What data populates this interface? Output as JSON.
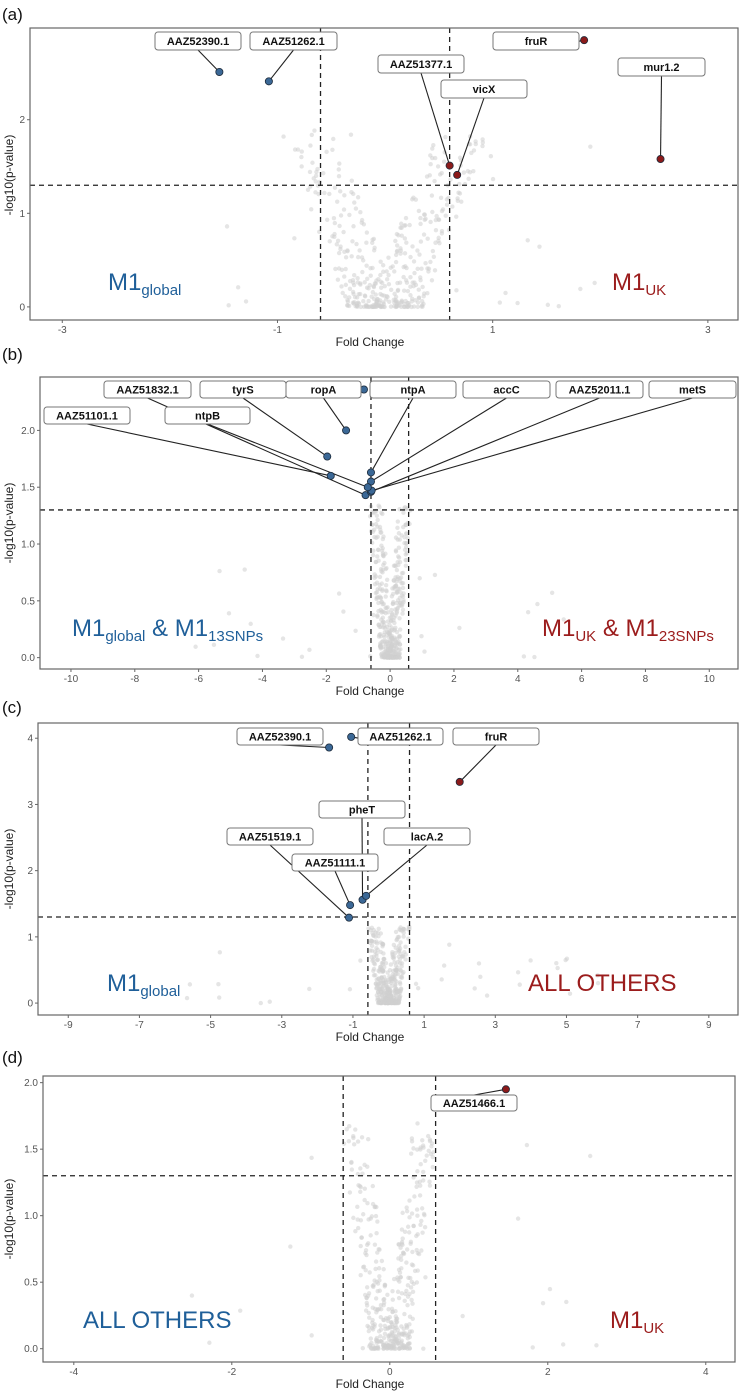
{
  "colors": {
    "blue": "#1f5f99",
    "red": "#9b1c1c",
    "blue_point": "#3b6896",
    "red_point": "#8b1a1a",
    "background_point": "#d0d0d0"
  },
  "chart_data": [
    {
      "type": "scatter",
      "tag": "(a)",
      "xlabel": "Fold Change",
      "ylabel": "-log10(p-value)",
      "xlim": [
        -3.3,
        3.28
      ],
      "ylim": [
        -0.14,
        2.98
      ],
      "xticks": [
        -3,
        -1,
        1,
        3
      ],
      "yticks": [
        0,
        1,
        2
      ],
      "ytick_labels": [
        "0",
        "1",
        "2"
      ],
      "fc_threshold": [
        -0.6,
        0.6
      ],
      "p_threshold": 1.3,
      "groups": {
        "left": {
          "color": "blue",
          "parts": [
            {
              "t": "M1"
            },
            {
              "t": "global",
              "sub": true
            }
          ]
        },
        "right": {
          "color": "red",
          "parts": [
            {
              "t": "M1"
            },
            {
              "t": "UK",
              "sub": true
            }
          ]
        }
      },
      "points": [
        {
          "label": "AAZ52390.1",
          "x": -1.54,
          "y": 2.51,
          "group": "blue"
        },
        {
          "label": "AAZ51262.1",
          "x": -1.08,
          "y": 2.41,
          "group": "blue"
        },
        {
          "label": "fruR",
          "x": 1.85,
          "y": 2.85,
          "group": "red"
        },
        {
          "label": "AAZ51377.1",
          "x": 0.6,
          "y": 1.51,
          "group": "red"
        },
        {
          "label": "vicX",
          "x": 0.67,
          "y": 1.41,
          "group": "red"
        },
        {
          "label": "mur1.2",
          "x": 2.56,
          "y": 1.58,
          "group": "red"
        }
      ]
    },
    {
      "type": "scatter",
      "tag": "(b)",
      "xlabel": "Fold Change",
      "ylabel": "-log10(p-value)",
      "xlim": [
        -10.97,
        10.9
      ],
      "ylim": [
        -0.1,
        2.47
      ],
      "xticks": [
        -10,
        -8,
        -6,
        -4,
        -2,
        0,
        2,
        4,
        6,
        8,
        10
      ],
      "yticks": [
        0,
        0.5,
        1,
        1.5,
        2
      ],
      "ytick_labels": [
        "0.0",
        "0.5",
        "1.0",
        "1.5",
        "2.0"
      ],
      "fc_threshold": [
        -0.6,
        0.58
      ],
      "p_threshold": 1.3,
      "groups": {
        "left": {
          "color": "blue",
          "parts": [
            {
              "t": "M1"
            },
            {
              "t": "global",
              "sub": true
            },
            {
              "t": " & M1"
            },
            {
              "t": "13SNPs",
              "sub": true
            }
          ]
        },
        "right": {
          "color": "red",
          "parts": [
            {
              "t": "M1"
            },
            {
              "t": "UK",
              "sub": true
            },
            {
              "t": " & M1"
            },
            {
              "t": "23SNPs",
              "sub": true
            }
          ]
        }
      },
      "points": [
        {
          "label": "AAZ51832.1",
          "x": -0.77,
          "y": 1.43,
          "group": "blue"
        },
        {
          "label": "tyrS",
          "x": -1.97,
          "y": 1.77,
          "group": "blue"
        },
        {
          "label": "ropA",
          "x": -1.38,
          "y": 2.0,
          "group": "blue"
        },
        {
          "label": "ntpA",
          "x": -0.6,
          "y": 1.63,
          "group": "blue"
        },
        {
          "label": "accC",
          "x": -0.6,
          "y": 1.55,
          "group": "blue"
        },
        {
          "label": "AAZ52011.1",
          "x": -0.6,
          "y": 1.46,
          "group": "blue"
        },
        {
          "label": "metS",
          "x": -0.58,
          "y": 1.47,
          "group": "blue"
        },
        {
          "label": "AAZ51101.1",
          "x": -1.86,
          "y": 1.6,
          "group": "blue"
        },
        {
          "label": "ntpB",
          "x": -0.7,
          "y": 1.5,
          "group": "blue"
        },
        {
          "label": "",
          "x": -0.82,
          "y": 2.36,
          "group": "blue"
        }
      ]
    },
    {
      "type": "scatter",
      "tag": "(c)",
      "xlabel": "Fold Change",
      "ylabel": "-log10(p-value)",
      "xlim": [
        -9.85,
        9.82
      ],
      "ylim": [
        -0.18,
        4.23
      ],
      "xticks": [
        -9,
        -7,
        -5,
        -3,
        -1,
        1,
        3,
        5,
        7,
        9
      ],
      "yticks": [
        0,
        1,
        2,
        3,
        4
      ],
      "ytick_labels": [
        "0",
        "1",
        "2",
        "3",
        "4"
      ],
      "fc_threshold": [
        -0.58,
        0.59
      ],
      "p_threshold": 1.3,
      "groups": {
        "left": {
          "color": "blue",
          "parts": [
            {
              "t": "M1"
            },
            {
              "t": "global",
              "sub": true
            }
          ]
        },
        "right": {
          "color": "red",
          "parts": [
            {
              "t": "ALL OTHERS"
            }
          ]
        }
      },
      "points": [
        {
          "label": "AAZ52390.1",
          "x": -1.67,
          "y": 3.86,
          "group": "blue"
        },
        {
          "label": "AAZ51262.1",
          "x": -1.05,
          "y": 4.02,
          "group": "blue"
        },
        {
          "label": "fruR",
          "x": 2.0,
          "y": 3.34,
          "group": "red"
        },
        {
          "label": "pheT",
          "x": -0.73,
          "y": 1.56,
          "group": "blue"
        },
        {
          "label": "AAZ51519.1",
          "x": -1.11,
          "y": 1.29,
          "group": "blue"
        },
        {
          "label": "lacA.2",
          "x": -0.63,
          "y": 1.62,
          "group": "blue"
        },
        {
          "label": "AAZ51111.1",
          "x": -1.08,
          "y": 1.48,
          "group": "blue"
        }
      ]
    },
    {
      "type": "scatter",
      "tag": "(d)",
      "xlabel": "Fold Change",
      "ylabel": "-log10(p-value)",
      "xlim": [
        -4.39,
        4.37
      ],
      "ylim": [
        -0.1,
        2.05
      ],
      "xticks": [
        -4,
        -2,
        0,
        2,
        4
      ],
      "yticks": [
        0,
        0.5,
        1,
        1.5,
        2
      ],
      "ytick_labels": [
        "0.0",
        "0.5",
        "1.0",
        "1.5",
        "2.0"
      ],
      "fc_threshold": [
        -0.59,
        0.58
      ],
      "p_threshold": 1.3,
      "groups": {
        "left": {
          "color": "blue",
          "parts": [
            {
              "t": "ALL OTHERS"
            }
          ]
        },
        "right": {
          "color": "red",
          "parts": [
            {
              "t": "M1"
            },
            {
              "t": "UK",
              "sub": true
            }
          ]
        }
      },
      "points": [
        {
          "label": "AAZ51466.1",
          "x": 1.47,
          "y": 1.95,
          "group": "red"
        }
      ]
    }
  ]
}
